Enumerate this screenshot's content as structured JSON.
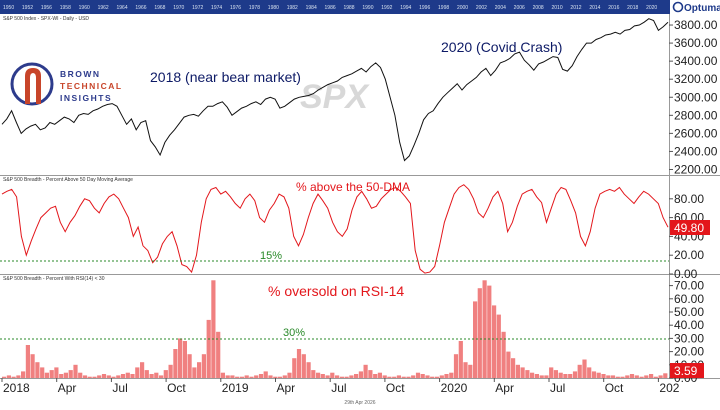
{
  "chart_data": [
    {
      "type": "line",
      "panel_title": "S&P 500 Index - SPX-WI - Daily - USD",
      "watermark": "SPX",
      "y_ticks": [
        "2200.00",
        "2400.00",
        "2600.00",
        "2800.00",
        "3000.00",
        "3200.00",
        "3400.00",
        "3600.00",
        "3800.00"
      ],
      "ylim": [
        2150,
        3900
      ],
      "annotations": [
        "2018 (near bear market)",
        "2020 (Covid Crash)"
      ],
      "series": [
        {
          "values": [
            2700,
            2760,
            2850,
            2720,
            2600,
            2650,
            2680,
            2700,
            2640,
            2660,
            2720,
            2700,
            2740,
            2780,
            2760,
            2720,
            2800,
            2820,
            2810,
            2850,
            2870,
            2900,
            2920,
            2930,
            2900,
            2800,
            2700,
            2760,
            2640,
            2720,
            2740,
            2520,
            2450,
            2360,
            2500,
            2580,
            2640,
            2710,
            2780,
            2800,
            2810,
            2790,
            2850,
            2900,
            2900,
            2930,
            2950,
            2890,
            2800,
            2840,
            2880,
            2900,
            2930,
            2950,
            2920,
            2980,
            3000,
            2980,
            2880,
            2900,
            2940,
            2980,
            3000,
            3010,
            3020,
            3040,
            3080,
            3110,
            3140,
            3160,
            3180,
            3220,
            3240,
            3260,
            3290,
            3320,
            3280,
            3340,
            3380,
            3330,
            3200,
            3000,
            2800,
            2500,
            2300,
            2350,
            2470,
            2600,
            2750,
            2820,
            2850,
            2930,
            3000,
            3050,
            3100,
            3150,
            3080,
            3140,
            3180,
            3220,
            3280,
            3320,
            3240,
            3300,
            3380,
            3400,
            3430,
            3480,
            3500,
            3410,
            3360,
            3300,
            3370,
            3390,
            3420,
            3450,
            3440,
            3310,
            3290,
            3350,
            3450,
            3530,
            3600,
            3600,
            3640,
            3660,
            3690,
            3700,
            3720,
            3700,
            3740,
            3750,
            3790,
            3800,
            3830,
            3870,
            3850,
            3740,
            3780,
            3830
          ]
        }
      ]
    },
    {
      "type": "line",
      "panel_title": "S&P 500 Breadth - Percent Above 50 Day Moving Average",
      "annotation": "% above the 50-DMA",
      "threshold": 15,
      "threshold_label": "15%",
      "y_ticks": [
        "0.00",
        "20.00",
        "40.00",
        "60.00",
        "80.00"
      ],
      "ylim": [
        0,
        100
      ],
      "last_value": "49.80",
      "series": [
        {
          "values": [
            85,
            88,
            90,
            82,
            40,
            20,
            35,
            48,
            60,
            65,
            70,
            72,
            55,
            45,
            55,
            62,
            72,
            80,
            78,
            70,
            65,
            75,
            82,
            85,
            80,
            70,
            60,
            40,
            50,
            30,
            25,
            12,
            18,
            32,
            40,
            45,
            30,
            10,
            8,
            2,
            20,
            55,
            80,
            90,
            92,
            85,
            88,
            82,
            75,
            70,
            80,
            85,
            78,
            60,
            55,
            68,
            75,
            85,
            82,
            70,
            40,
            30,
            42,
            60,
            75,
            85,
            78,
            70,
            55,
            45,
            40,
            48,
            68,
            82,
            88,
            80,
            70,
            72,
            80,
            85,
            90,
            92,
            88,
            82,
            75,
            25,
            5,
            1,
            2,
            8,
            30,
            55,
            70,
            85,
            92,
            95,
            90,
            80,
            65,
            60,
            70,
            82,
            88,
            75,
            45,
            55,
            72,
            85,
            88,
            90,
            82,
            76,
            55,
            70,
            85,
            92,
            90,
            78,
            65,
            40,
            30,
            45,
            70,
            85,
            88,
            90,
            88,
            92,
            85,
            80,
            75,
            82,
            88,
            85,
            80,
            75,
            60,
            49.8
          ]
        }
      ]
    },
    {
      "type": "bar",
      "panel_title": "S&P 500 Breadth - Percent With RSI(14) < 30",
      "annotation": "% oversold on RSI-14",
      "threshold": 30,
      "threshold_label": "30%",
      "y_ticks": [
        "0.00",
        "10.00",
        "20.00",
        "30.00",
        "40.00",
        "50.00",
        "60.00",
        "70.00"
      ],
      "ylim": [
        0,
        75
      ],
      "last_value": "3.59",
      "x_labels": [
        "2018",
        "Apr",
        "Jul",
        "Oct",
        "2019",
        "Apr",
        "Jul",
        "Oct",
        "2020",
        "Apr",
        "Jul",
        "Oct",
        "202"
      ],
      "series": [
        {
          "values": [
            1,
            2,
            1,
            2,
            5,
            25,
            18,
            12,
            8,
            4,
            6,
            8,
            3,
            4,
            6,
            10,
            4,
            2,
            1,
            1,
            2,
            3,
            2,
            1,
            2,
            3,
            4,
            3,
            8,
            12,
            6,
            3,
            4,
            2,
            6,
            10,
            22,
            30,
            28,
            18,
            8,
            12,
            18,
            44,
            74,
            35,
            4,
            2,
            2,
            1,
            1,
            2,
            1,
            2,
            3,
            5,
            2,
            1,
            1,
            2,
            4,
            15,
            22,
            18,
            12,
            6,
            4,
            3,
            2,
            4,
            2,
            1,
            1,
            2,
            3,
            5,
            10,
            6,
            3,
            4,
            2,
            1,
            1,
            2,
            1,
            1,
            2,
            4,
            3,
            2,
            1,
            1,
            2,
            3,
            4,
            18,
            28,
            12,
            10,
            58,
            68,
            74,
            70,
            55,
            48,
            35,
            20,
            15,
            10,
            8,
            6,
            4,
            3,
            2,
            2,
            8,
            6,
            4,
            3,
            3,
            5,
            10,
            14,
            8,
            5,
            4,
            3,
            2,
            2,
            1,
            1,
            2,
            3,
            2,
            1,
            2,
            3,
            1,
            2,
            3.59
          ]
        }
      ]
    }
  ],
  "top_axis_years": [
    "1950",
    "1952",
    "1956",
    "1958",
    "1960",
    "1962",
    "1964",
    "1966",
    "1968",
    "1970",
    "1972",
    "1974",
    "1976",
    "1978",
    "1980",
    "1982",
    "1984",
    "1986",
    "1988",
    "1990",
    "1992",
    "1994",
    "1996",
    "1998",
    "2000",
    "2002",
    "2004",
    "2006",
    "2008",
    "2010",
    "2012",
    "2014",
    "2016",
    "2018",
    "2020"
  ],
  "logo": {
    "line1": "BROWN",
    "line2": "TECHNICAL",
    "line3": "INSIGHTS"
  },
  "vendor": "Optuma",
  "footer_date": "29th Apr 2026",
  "colors": {
    "price_line": "#111111",
    "breadth_line": "#e3161b",
    "rsi_bars": "#f08080",
    "threshold": "#2a8a2a",
    "badge": "#e3161b",
    "logo_blue": "#2d3b8c",
    "logo_red": "#c8452a",
    "top_strip": "#1e3a8a"
  }
}
